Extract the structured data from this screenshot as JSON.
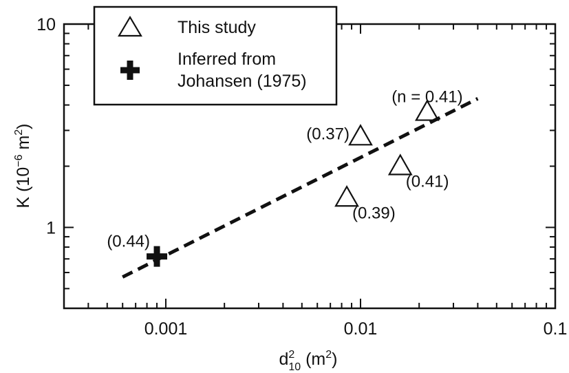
{
  "chart_data": {
    "type": "scatter",
    "x_scale": "log",
    "y_scale": "log",
    "xlim": [
      0.0003,
      0.1
    ],
    "ylim": [
      0.4,
      10
    ],
    "xlabel": {
      "main": "d",
      "sub": "10",
      "sup": "2",
      "unit_open": " (m",
      "unit_sup": "2",
      "unit_close": ")"
    },
    "ylabel": {
      "main": "K (10",
      "sup": "−6",
      "mid": " m",
      "sup2": "2",
      "close": ")"
    },
    "x_ticks": [
      {
        "value": 0.001,
        "label": "0.001"
      },
      {
        "value": 0.01,
        "label": "0.01"
      },
      {
        "value": 0.1,
        "label": "0.1"
      }
    ],
    "y_ticks": [
      {
        "value": 1,
        "label": "1"
      },
      {
        "value": 10,
        "label": "10"
      }
    ],
    "grid": false,
    "legend": {
      "position": "top-left",
      "entries": [
        {
          "marker": "triangle",
          "lines": [
            "This study"
          ]
        },
        {
          "marker": "plus",
          "lines": [
            "Inferred from",
            "Johansen (1975)"
          ]
        }
      ]
    },
    "series": [
      {
        "name": "This study",
        "marker": "triangle",
        "points": [
          {
            "x": 0.0085,
            "y": 1.4,
            "label": "(0.39)",
            "label_pos": "below-right"
          },
          {
            "x": 0.01,
            "y": 2.8,
            "label": "(0.37)",
            "label_pos": "left"
          },
          {
            "x": 0.016,
            "y": 2.0,
            "label": "(0.41)",
            "label_pos": "below-right"
          },
          {
            "x": 0.022,
            "y": 3.7,
            "label": "(n = 0.41)",
            "label_pos": "above"
          }
        ]
      },
      {
        "name": "Inferred from Johansen (1975)",
        "marker": "plus",
        "points": [
          {
            "x": 0.0009,
            "y": 0.72,
            "label": "(0.44)",
            "label_pos": "above-left"
          }
        ]
      }
    ],
    "fit_line": {
      "style": "dashed",
      "x": [
        0.0006,
        0.04
      ],
      "y": [
        0.57,
        4.3
      ]
    },
    "colors": {
      "ink": "#111111",
      "background": "#ffffff"
    }
  }
}
